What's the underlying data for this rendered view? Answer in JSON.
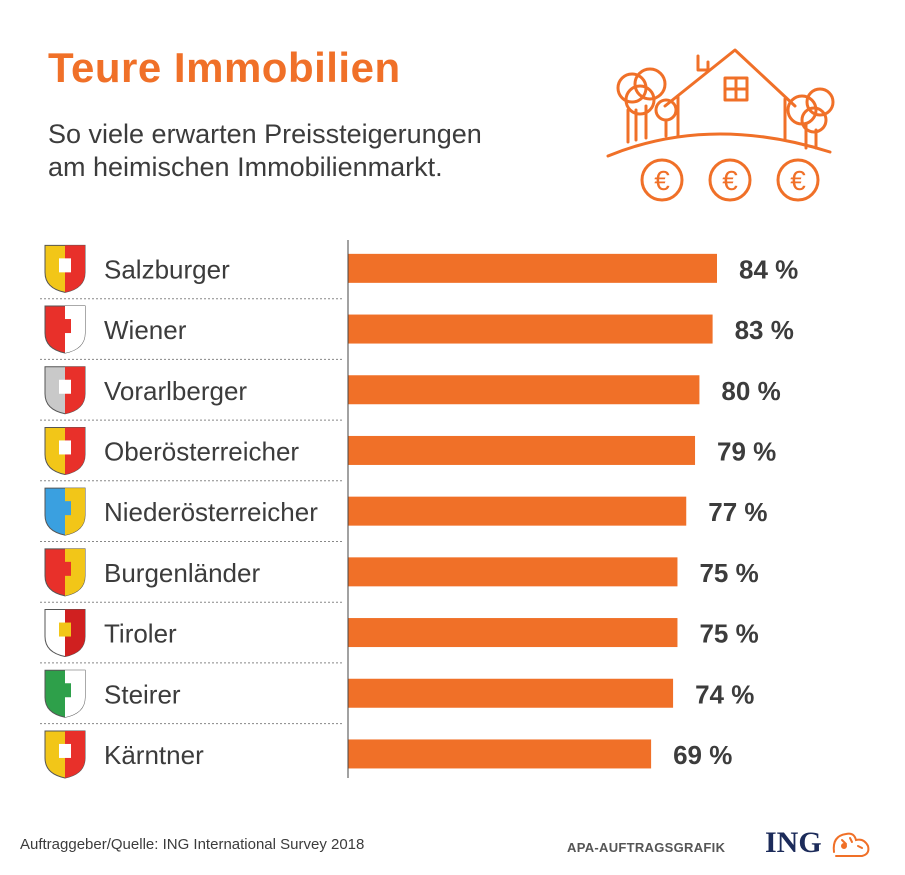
{
  "title": "Teure Immobilien",
  "subtitle": [
    "So viele erwarten Preissteigerungen",
    "am heimischen Immobilienmarkt."
  ],
  "colors": {
    "accent": "#f07028",
    "text": "#3c3c3c",
    "ing_blue": "#1c2b5a"
  },
  "illustration": {
    "name": "house-with-trees-and-euro-coins-icon",
    "coin_symbol": "€"
  },
  "chart_data": {
    "type": "bar",
    "orientation": "horizontal",
    "categories": [
      "Salzburger",
      "Wiener",
      "Vorarlberger",
      "Oberösterreicher",
      "Niederösterreicher",
      "Burgenländer",
      "Tiroler",
      "Steirer",
      "Kärntner"
    ],
    "values": [
      84,
      83,
      80,
      79,
      77,
      75,
      75,
      74,
      69
    ],
    "value_labels": [
      "84 %",
      "83 %",
      "80 %",
      "79 %",
      "77 %",
      "75 %",
      "75 %",
      "74 %",
      "69 %"
    ],
    "unit": "%",
    "category_icons": [
      "salzburg-coat-of-arms-icon",
      "vienna-coat-of-arms-icon",
      "vorarlberg-coat-of-arms-icon",
      "upper-austria-coat-of-arms-icon",
      "lower-austria-coat-of-arms-icon",
      "burgenland-coat-of-arms-icon",
      "tyrol-coat-of-arms-icon",
      "styria-coat-of-arms-icon",
      "carinthia-coat-of-arms-icon"
    ],
    "bar_color": "#f07028",
    "grid": false,
    "legend": "none"
  },
  "footer": {
    "source": "Auftraggeber/Quelle: ING International Survey 2018",
    "apa": "APA-AUFTRAGSGRAFIK",
    "logo_text": "ING"
  }
}
